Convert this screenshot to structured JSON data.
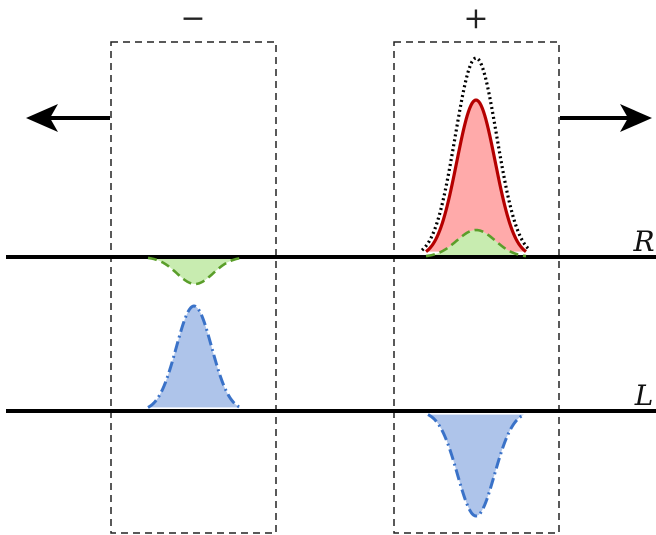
{
  "labels": {
    "minus_sign": "−",
    "plus_sign": "+",
    "line_R": "R",
    "line_L": "L"
  },
  "colors": {
    "red_fill": "#ffaaaa",
    "red_stroke": "#b50000",
    "green_fill": "#c8ecb0",
    "green_stroke": "#5a9e2a",
    "blue_fill": "#aec4ea",
    "blue_stroke": "#3a72c8",
    "line": "#000000",
    "box": "#222222"
  }
}
